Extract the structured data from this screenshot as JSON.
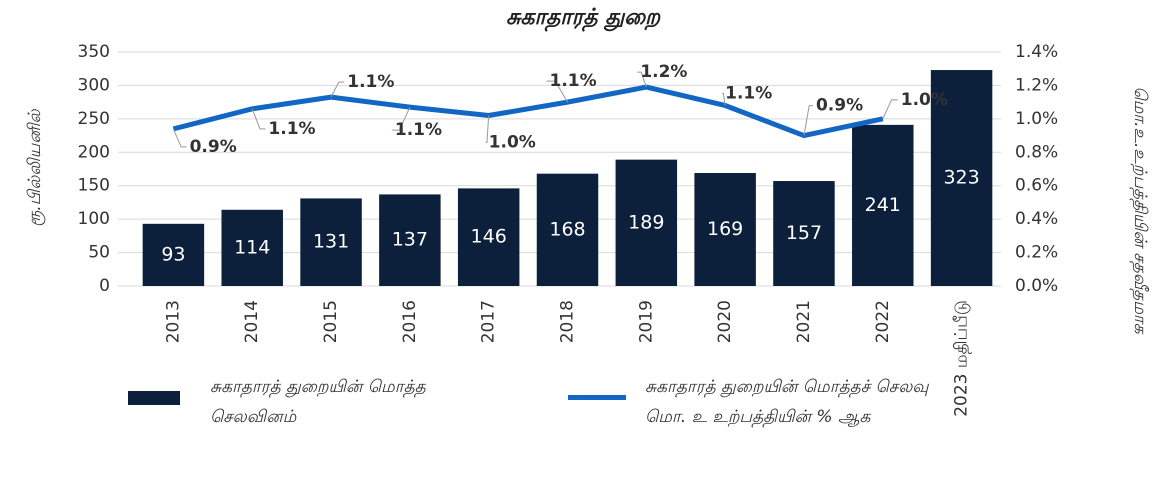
{
  "chart_data": {
    "type": "bar-line",
    "title": "சுகாதாரத் துறை",
    "y_label": "ரூ.பில்லியனில்",
    "y2_label": "மொ.உ.உற்பத்தியின் சதவீதமாக",
    "categories": [
      "2013",
      "2014",
      "2015",
      "2016",
      "2017",
      "2018",
      "2019",
      "2020",
      "2021",
      "2022",
      "2023 மதிப்பீடு"
    ],
    "series": [
      {
        "name": "சுகாதாரத் துறையின் மொத்த செலவினம்",
        "type": "bar",
        "color": "#0c1f3b",
        "values": [
          93,
          114,
          131,
          137,
          146,
          168,
          189,
          169,
          157,
          241,
          323
        ]
      },
      {
        "name": "சுகாதாரத் துறையின் மொத்தச் செலவு மொ. உ உற்பத்தியின் % ஆக",
        "type": "line",
        "axis": "y2",
        "color": "#1266c4",
        "values": [
          0.94,
          1.06,
          1.13,
          1.07,
          1.02,
          1.1,
          1.19,
          1.08,
          0.9,
          1.0,
          null
        ],
        "value_labels": [
          "0.9%",
          "1.1%",
          "1.1%",
          "1.1%",
          "1.0%",
          "1.1%",
          "1.2%",
          "1.1%",
          "0.9%",
          "1.0%",
          null
        ]
      }
    ],
    "ylim": [
      0,
      350
    ],
    "yticks": [
      0,
      50,
      100,
      150,
      200,
      250,
      300,
      350
    ],
    "y2lim": [
      0,
      1.4
    ],
    "y2ticks": [
      {
        "value": 0,
        "label": "0.0%"
      },
      {
        "value": 0.2,
        "label": "0.2%"
      },
      {
        "value": 0.4,
        "label": "0.4%"
      },
      {
        "value": 0.6,
        "label": "0.6%"
      },
      {
        "value": 0.8,
        "label": "0.8%"
      },
      {
        "value": 1.0,
        "label": "1.0%"
      },
      {
        "value": 1.2,
        "label": "1.2%"
      },
      {
        "value": 1.4,
        "label": "1.4%"
      }
    ],
    "grid": true,
    "legend": "bottom"
  }
}
